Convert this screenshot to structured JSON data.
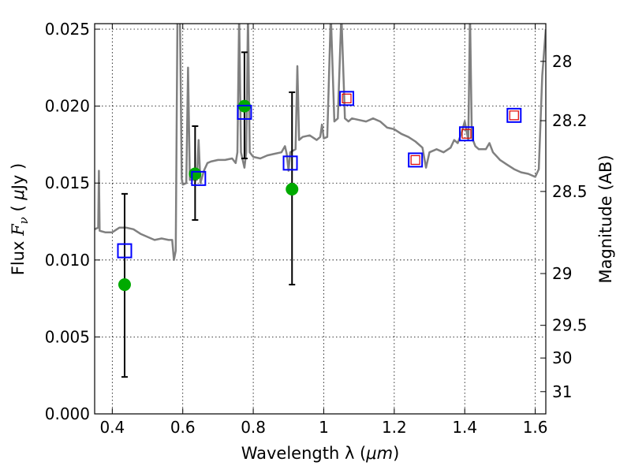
{
  "chart_data": {
    "type": "scatter",
    "x_axis": {
      "label_prefix": "Wavelength  λ (",
      "label_unit": "μm",
      "label_suffix": ")",
      "range": [
        0.35,
        1.63
      ],
      "ticks": [
        0.4,
        0.6,
        0.8,
        1.0,
        1.2,
        1.4,
        1.6
      ],
      "tick_labels": [
        "0.4",
        "0.6",
        "0.8",
        "1",
        "1.2",
        "1.4",
        "1.6"
      ]
    },
    "y_axis": {
      "label_prefix": "Flux  ",
      "label_symbol": "F",
      "label_sub": "ν",
      "label_unit_open": "  ( ",
      "label_unit_mu": "μ",
      "label_unit_rest": "Jy )",
      "range": [
        0.0,
        0.02536
      ],
      "ticks": [
        0.0,
        0.005,
        0.01,
        0.015,
        0.02,
        0.025
      ],
      "tick_labels": [
        "0.000",
        "0.005",
        "0.010",
        "0.015",
        "0.020",
        "0.025"
      ]
    },
    "right_axis": {
      "label": "Magnitude (AB)",
      "ticks": [
        28,
        28.2,
        28.5,
        29,
        29.5,
        30,
        31
      ],
      "tick_labels": [
        "28",
        "28.2",
        "28.5",
        "29",
        "29.5",
        "30",
        "31"
      ]
    },
    "grid": true,
    "template_spectrum": {
      "color": "#808080",
      "points": [
        [
          0.35,
          0.012
        ],
        [
          0.36,
          0.0121
        ],
        [
          0.362,
          0.0158
        ],
        [
          0.364,
          0.0119
        ],
        [
          0.38,
          0.0118
        ],
        [
          0.4,
          0.0118
        ],
        [
          0.42,
          0.0121
        ],
        [
          0.44,
          0.0121
        ],
        [
          0.46,
          0.012
        ],
        [
          0.48,
          0.0117
        ],
        [
          0.5,
          0.0115
        ],
        [
          0.52,
          0.0113
        ],
        [
          0.54,
          0.0114
        ],
        [
          0.56,
          0.0113
        ],
        [
          0.57,
          0.0113
        ],
        [
          0.575,
          0.01
        ],
        [
          0.58,
          0.0106
        ],
        [
          0.585,
          0.026
        ],
        [
          0.592,
          0.026
        ],
        [
          0.597,
          0.0153
        ],
        [
          0.6,
          0.0149
        ],
        [
          0.61,
          0.015
        ],
        [
          0.615,
          0.0225
        ],
        [
          0.62,
          0.0152
        ],
        [
          0.63,
          0.0152
        ],
        [
          0.64,
          0.0152
        ],
        [
          0.645,
          0.0178
        ],
        [
          0.65,
          0.015
        ],
        [
          0.66,
          0.0158
        ],
        [
          0.67,
          0.0163
        ],
        [
          0.68,
          0.0164
        ],
        [
          0.7,
          0.0165
        ],
        [
          0.72,
          0.0165
        ],
        [
          0.74,
          0.0166
        ],
        [
          0.75,
          0.0163
        ],
        [
          0.755,
          0.017
        ],
        [
          0.76,
          0.026
        ],
        [
          0.765,
          0.017
        ],
        [
          0.775,
          0.016
        ],
        [
          0.78,
          0.017
        ],
        [
          0.785,
          0.026
        ],
        [
          0.79,
          0.017
        ],
        [
          0.8,
          0.0167
        ],
        [
          0.82,
          0.0166
        ],
        [
          0.84,
          0.0168
        ],
        [
          0.86,
          0.0169
        ],
        [
          0.88,
          0.017
        ],
        [
          0.89,
          0.0174
        ],
        [
          0.895,
          0.0169
        ],
        [
          0.9,
          0.0158
        ],
        [
          0.905,
          0.017
        ],
        [
          0.92,
          0.0172
        ],
        [
          0.925,
          0.0226
        ],
        [
          0.93,
          0.0178
        ],
        [
          0.94,
          0.018
        ],
        [
          0.96,
          0.0181
        ],
        [
          0.98,
          0.0178
        ],
        [
          0.99,
          0.018
        ],
        [
          0.995,
          0.0188
        ],
        [
          1.0,
          0.0179
        ],
        [
          1.01,
          0.018
        ],
        [
          1.02,
          0.026
        ],
        [
          1.03,
          0.019
        ],
        [
          1.04,
          0.0192
        ],
        [
          1.05,
          0.026
        ],
        [
          1.06,
          0.0192
        ],
        [
          1.07,
          0.019
        ],
        [
          1.08,
          0.0192
        ],
        [
          1.1,
          0.0191
        ],
        [
          1.12,
          0.019
        ],
        [
          1.14,
          0.0192
        ],
        [
          1.16,
          0.019
        ],
        [
          1.18,
          0.0186
        ],
        [
          1.2,
          0.0185
        ],
        [
          1.22,
          0.0182
        ],
        [
          1.24,
          0.018
        ],
        [
          1.26,
          0.0177
        ],
        [
          1.28,
          0.0173
        ],
        [
          1.29,
          0.016
        ],
        [
          1.3,
          0.017
        ],
        [
          1.32,
          0.0172
        ],
        [
          1.34,
          0.017
        ],
        [
          1.36,
          0.0173
        ],
        [
          1.37,
          0.0178
        ],
        [
          1.38,
          0.0176
        ],
        [
          1.39,
          0.0182
        ],
        [
          1.4,
          0.019
        ],
        [
          1.41,
          0.0178
        ],
        [
          1.415,
          0.026
        ],
        [
          1.42,
          0.018
        ],
        [
          1.43,
          0.0174
        ],
        [
          1.44,
          0.0172
        ],
        [
          1.46,
          0.0172
        ],
        [
          1.47,
          0.0176
        ],
        [
          1.48,
          0.017
        ],
        [
          1.5,
          0.0165
        ],
        [
          1.52,
          0.0162
        ],
        [
          1.54,
          0.0159
        ],
        [
          1.56,
          0.0157
        ],
        [
          1.58,
          0.0156
        ],
        [
          1.6,
          0.0154
        ],
        [
          1.61,
          0.0159
        ],
        [
          1.62,
          0.022
        ],
        [
          1.63,
          0.025
        ]
      ]
    },
    "observed_points": {
      "color": "#00aa00",
      "points": [
        {
          "x": 0.435,
          "y": 0.0084,
          "err_low": 0.0024,
          "err_high": 0.0143
        },
        {
          "x": 0.635,
          "y": 0.0156,
          "err_low": 0.0126,
          "err_high": 0.0187
        },
        {
          "x": 0.775,
          "y": 0.02,
          "err_low": 0.0166,
          "err_high": 0.0235
        },
        {
          "x": 0.91,
          "y": 0.0146,
          "err_low": 0.0084,
          "err_high": 0.0209
        }
      ]
    },
    "model_photometry_blue": {
      "color": "#0000ff",
      "points": [
        [
          0.435,
          0.0106
        ],
        [
          0.645,
          0.0153
        ],
        [
          0.775,
          0.0196
        ],
        [
          0.905,
          0.0163
        ],
        [
          1.065,
          0.0205
        ],
        [
          1.26,
          0.0165
        ],
        [
          1.405,
          0.0182
        ],
        [
          1.54,
          0.0194
        ]
      ]
    },
    "model_photometry_red": {
      "color": "#dd0000",
      "points": [
        [
          1.065,
          0.0205
        ],
        [
          1.26,
          0.0165
        ],
        [
          1.405,
          0.0182
        ],
        [
          1.54,
          0.0194
        ]
      ]
    }
  }
}
